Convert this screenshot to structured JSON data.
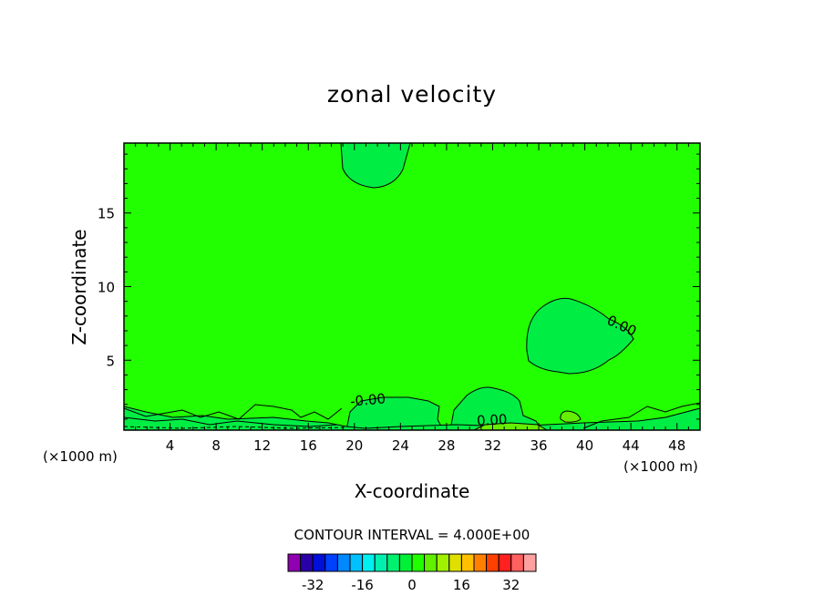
{
  "chart_data": {
    "type": "contour",
    "title": "zonal velocity",
    "xlabel": "X-coordinate",
    "ylabel": "Z-coordinate",
    "x_unit_left": "(×1000 m)",
    "x_unit_right": "(×1000 m)",
    "xlim": [
      0,
      50
    ],
    "ylim": [
      0.25,
      19.75
    ],
    "x_ticks": [
      4,
      8,
      12,
      16,
      20,
      24,
      28,
      32,
      36,
      40,
      44,
      48
    ],
    "y_ticks": [
      5,
      10,
      15
    ],
    "contour_labels": [
      "0.00",
      "0.00",
      "-0.00"
    ],
    "contour_interval_text": "CONTOUR INTERVAL = 4.000E+00",
    "colorbar": {
      "min": -40,
      "max": 40,
      "tick_values": [
        -32,
        -16,
        0,
        16,
        32
      ],
      "colors": [
        "#8e00b0",
        "#2a00a8",
        "#0010d8",
        "#0040ff",
        "#0088ff",
        "#00c0ff",
        "#00f0f0",
        "#00f0b0",
        "#00f070",
        "#00f038",
        "#20ff00",
        "#60f000",
        "#a0f000",
        "#e0e000",
        "#ffc000",
        "#ff8000",
        "#ff4000",
        "#ff2020",
        "#ff6060",
        "#ffa0a0"
      ]
    },
    "field_color": "#22ff00",
    "positive_patch_color": "#00ee44",
    "negative_patch_color": "#66ee00"
  }
}
